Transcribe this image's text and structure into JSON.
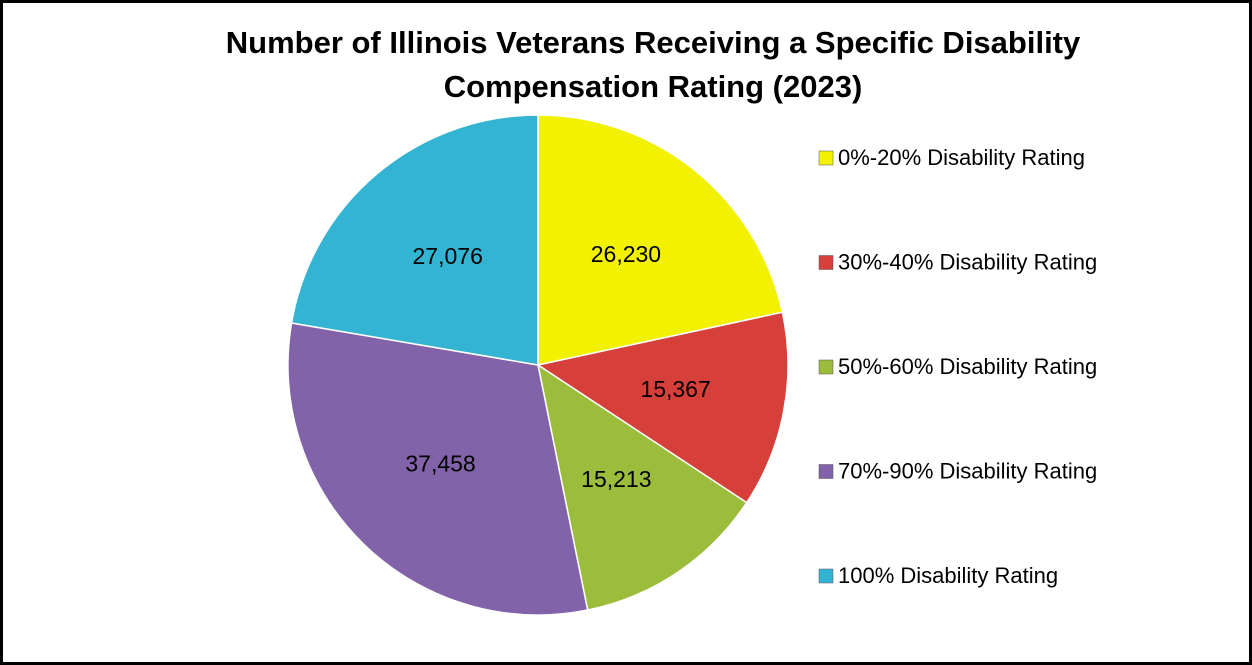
{
  "chart_data": {
    "type": "pie",
    "title": "Number of Illinois Veterans Receiving a Specific Disability Compensation Rating (2023)",
    "categories": [
      "0%-20% Disability Rating",
      "30%-40% Disability Rating",
      "50%-60% Disability Rating",
      "70%-90% Disability Rating",
      "100% Disability Rating"
    ],
    "values": [
      26230,
      15367,
      15213,
      37458,
      27076
    ],
    "value_labels": [
      "26,230",
      "15,367",
      "15,213",
      "37,458",
      "27,076"
    ],
    "colors": [
      "#f2f200",
      "#d63f3a",
      "#9cbd3c",
      "#8262a8",
      "#33b4d3"
    ],
    "legend": "right"
  }
}
